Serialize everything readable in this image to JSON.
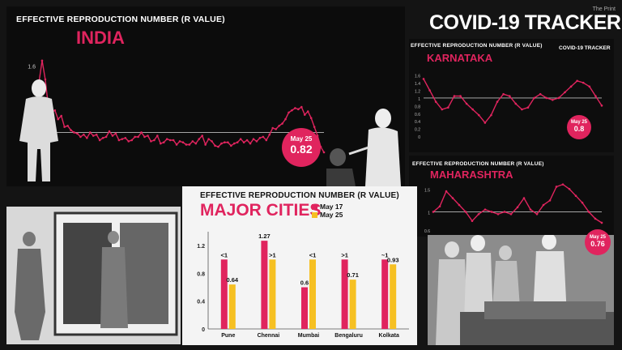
{
  "tracker_title": "COVID-19 TRACKER",
  "credit": "The Print",
  "colors": {
    "accent": "#e0245e",
    "yellow": "#f6c022",
    "line": "#e0245e"
  },
  "chart_data": [
    {
      "type": "line",
      "title": "EFFECTIVE REPRODUCTION NUMBER (R VALUE)",
      "subtitle": "INDIA",
      "ylim": [
        0.6,
        1.7
      ],
      "yticks": [
        "1.6",
        "1.2",
        "0.6"
      ],
      "reference_line": 1.0,
      "values": [
        1.45,
        1.65,
        1.48,
        1.22,
        1.18,
        1.2,
        1.12,
        1.15,
        1.05,
        1.06,
        1.02,
        1.0,
        0.99,
        0.96,
        0.98,
        0.95,
        1.0,
        0.97,
        0.98,
        0.93,
        0.95,
        0.96,
        1.01,
        0.97,
        0.99,
        0.93,
        0.94,
        0.95,
        0.92,
        0.93,
        0.96,
        0.96,
        1.0,
        0.96,
        0.97,
        0.92,
        0.93,
        0.97,
        0.9,
        0.91,
        0.94,
        0.93,
        0.93,
        0.89,
        0.92,
        0.91,
        0.89,
        0.89,
        0.92,
        0.9,
        0.94,
        0.97,
        0.89,
        0.94,
        0.92,
        0.88,
        0.87,
        0.9,
        0.91,
        0.91,
        0.88,
        0.9,
        0.91,
        0.94,
        0.91,
        0.93,
        0.9,
        0.94,
        0.92,
        0.95,
        0.96,
        0.93,
        0.98,
        1.04,
        1.03,
        1.06,
        1.08,
        1.12,
        1.18,
        1.2,
        1.22,
        1.21,
        1.23,
        1.16,
        1.19,
        1.13,
        1.05,
        0.97,
        0.87,
        0.82
      ],
      "callout_label": "May 25",
      "callout_value": "0.82"
    },
    {
      "type": "line",
      "title": "EFFECTIVE REPRODUCTION NUMBER (R VALUE)",
      "subtitle": "KARNATAKA",
      "ylim": [
        0.0,
        1.7
      ],
      "yticks": [
        "1.6",
        "1.4",
        "1.2",
        "1",
        "0.8",
        "0.6",
        "0.4",
        "0.2",
        "0"
      ],
      "reference_line": 1.0,
      "values": [
        1.5,
        1.2,
        0.9,
        0.7,
        0.75,
        1.05,
        1.05,
        0.85,
        0.7,
        0.55,
        0.35,
        0.55,
        0.9,
        1.1,
        1.05,
        0.85,
        0.7,
        0.75,
        1.0,
        1.1,
        1.0,
        0.95,
        1.0,
        1.15,
        1.3,
        1.45,
        1.4,
        1.3,
        1.05,
        0.8
      ],
      "callout_label": "May 25",
      "callout_value": "0.8",
      "corner_label": "COVID-19 TRACKER"
    },
    {
      "type": "line",
      "title": "EFFECTIVE REPRODUCTION NUMBER (R VALUE)",
      "subtitle": "MAHARASHTRA",
      "ylim": [
        0.6,
        1.7
      ],
      "yticks": [
        "1.5",
        "1",
        "0.6"
      ],
      "reference_line": 1.0,
      "values": [
        1.0,
        1.12,
        1.45,
        1.3,
        1.15,
        1.0,
        0.8,
        0.95,
        1.05,
        1.0,
        0.95,
        1.0,
        0.95,
        1.1,
        1.3,
        1.05,
        0.95,
        1.15,
        1.25,
        1.55,
        1.6,
        1.5,
        1.35,
        1.2,
        1.0,
        0.85,
        0.76
      ],
      "callout_label": "May 25",
      "callout_value": "0.76"
    },
    {
      "type": "bar",
      "title": "EFFECTIVE REPRODUCTION NUMBER (R VALUE)",
      "subtitle": "MAJOR CITIES",
      "categories": [
        "Pune",
        "Chennai",
        "Mumbai",
        "Bengaluru",
        "Kolkata"
      ],
      "ylim": [
        0,
        1.4
      ],
      "yticks": [
        "1.2",
        "0.8",
        "0.4",
        "0"
      ],
      "series": [
        {
          "name": "May 17",
          "color": "#e0245e",
          "values": [
            1.0,
            1.27,
            0.6,
            1.0,
            1.0
          ],
          "labels": [
            "<1",
            "1.27",
            "0.6",
            ">1",
            "~1"
          ]
        },
        {
          "name": "May 25",
          "color": "#f6c022",
          "values": [
            0.64,
            1.0,
            1.0,
            0.71,
            0.93
          ],
          "labels": [
            "0.64",
            ">1",
            "<1",
            "0.71",
            "0.93"
          ]
        }
      ]
    }
  ]
}
